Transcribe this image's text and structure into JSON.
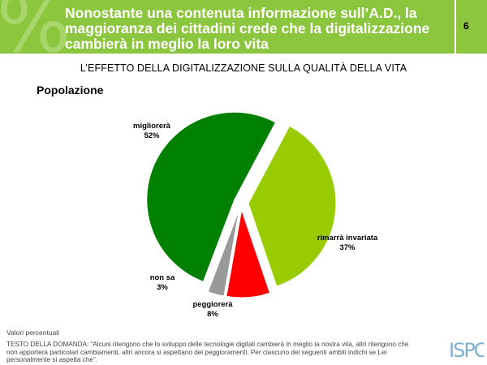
{
  "header": {
    "title": "Nonostante una contenuta informazione sull’A.D., la maggioranza dei cittadini crede che la digitalizzazione cambierà in meglio la loro vita",
    "page_number": "6",
    "bg_color": "#8cc63f"
  },
  "subtitle": "L’EFFETTO DELLA DIGITALIZZAZIONE SULLA QUALITÀ DELLA VITA",
  "section_label": "Popolazione",
  "chart_data": {
    "type": "pie",
    "slices": [
      {
        "label": "rimarrà invariata",
        "value": 37,
        "value_label": "37%",
        "color": "#99cc00"
      },
      {
        "label": "peggiorerà",
        "value": 8,
        "value_label": "8%",
        "color": "#ff0000"
      },
      {
        "label": "non sa",
        "value": 3,
        "value_label": "3%",
        "color": "#999999"
      },
      {
        "label": "migliorerà",
        "value": 52,
        "value_label": "52%",
        "color": "#008000"
      }
    ]
  },
  "footer": {
    "note": "Valori percentuali",
    "question": "TESTO DELLA DOMANDA: “Alcuni ritengono che lo sviluppo delle tecnologie digitali cambierà in meglio la nostra vita, altri ritengono che non apporterà particolari cambiamenti, altri ancora si aspettano dei peggioramenti. Per ciascuno dei seguenti ambiti indichi se Lei personalmente si aspetta che”."
  },
  "logo": {
    "text": "ISPO"
  }
}
